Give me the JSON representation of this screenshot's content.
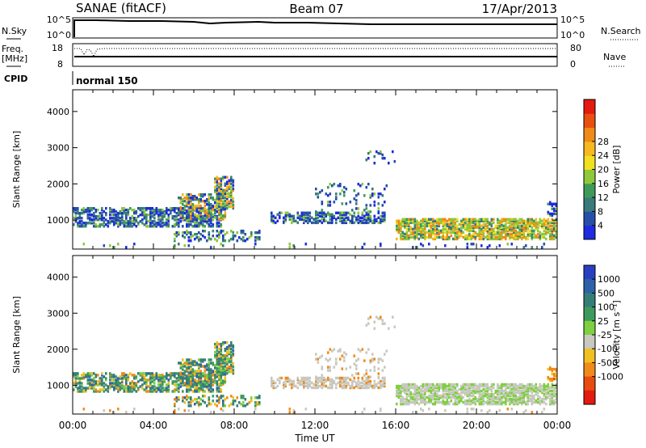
{
  "header": {
    "title": "SANAE (fitACF)",
    "beam": "Beam 07",
    "date": "17/Apr/2013"
  },
  "nsky_panel": {
    "left_label": "N.Sky",
    "right_label": "N.Search",
    "ticks": [
      "10^5",
      "10^0"
    ]
  },
  "freq_panel": {
    "left_label_top": "Freq.",
    "left_label_units": "[MHz]",
    "left_ticks": [
      "18",
      "8"
    ],
    "right_label": "Nave",
    "right_ticks": [
      "80",
      "0"
    ]
  },
  "cpid_panel": {
    "label": "CPID",
    "mode_text": "normal 150"
  },
  "chart_data": [
    {
      "type": "heatmap",
      "title": "",
      "ylabel": "Slant Range [km]",
      "xlabel": "",
      "ylim": [
        200,
        4600
      ],
      "y_ticks": [
        "1000",
        "2000",
        "3000",
        "4000"
      ],
      "colorbar": {
        "label": "Power [dB]",
        "ticks": [
          "4",
          "8",
          "12",
          "16",
          "20",
          "24",
          "28"
        ],
        "colors": [
          "#1e2be0",
          "#2650a8",
          "#3a7a7a",
          "#3f9a5a",
          "#8ec93a",
          "#f0e020",
          "#f7b820",
          "#f08a18",
          "#e85010",
          "#e41a10"
        ]
      }
    },
    {
      "type": "heatmap",
      "title": "",
      "ylabel": "Slant Range [km]",
      "xlabel": "Time UT",
      "ylim": [
        200,
        4600
      ],
      "y_ticks": [
        "1000",
        "2000",
        "3000",
        "4000"
      ],
      "x_ticks": [
        "00:00",
        "04:00",
        "08:00",
        "12:00",
        "16:00",
        "20:00",
        "00:00"
      ],
      "colorbar": {
        "label": "Velocity [m s⁻¹]",
        "ticks": [
          "1000",
          "500",
          "100",
          "25",
          "-25",
          "-100",
          "-500",
          "-1000"
        ],
        "colors": [
          "#2a3fc0",
          "#2e62a8",
          "#357e78",
          "#3e9a5c",
          "#7fd040",
          "#c8c8c0",
          "#f0c020",
          "#f08a18",
          "#e84c10",
          "#e41a10"
        ]
      }
    }
  ]
}
